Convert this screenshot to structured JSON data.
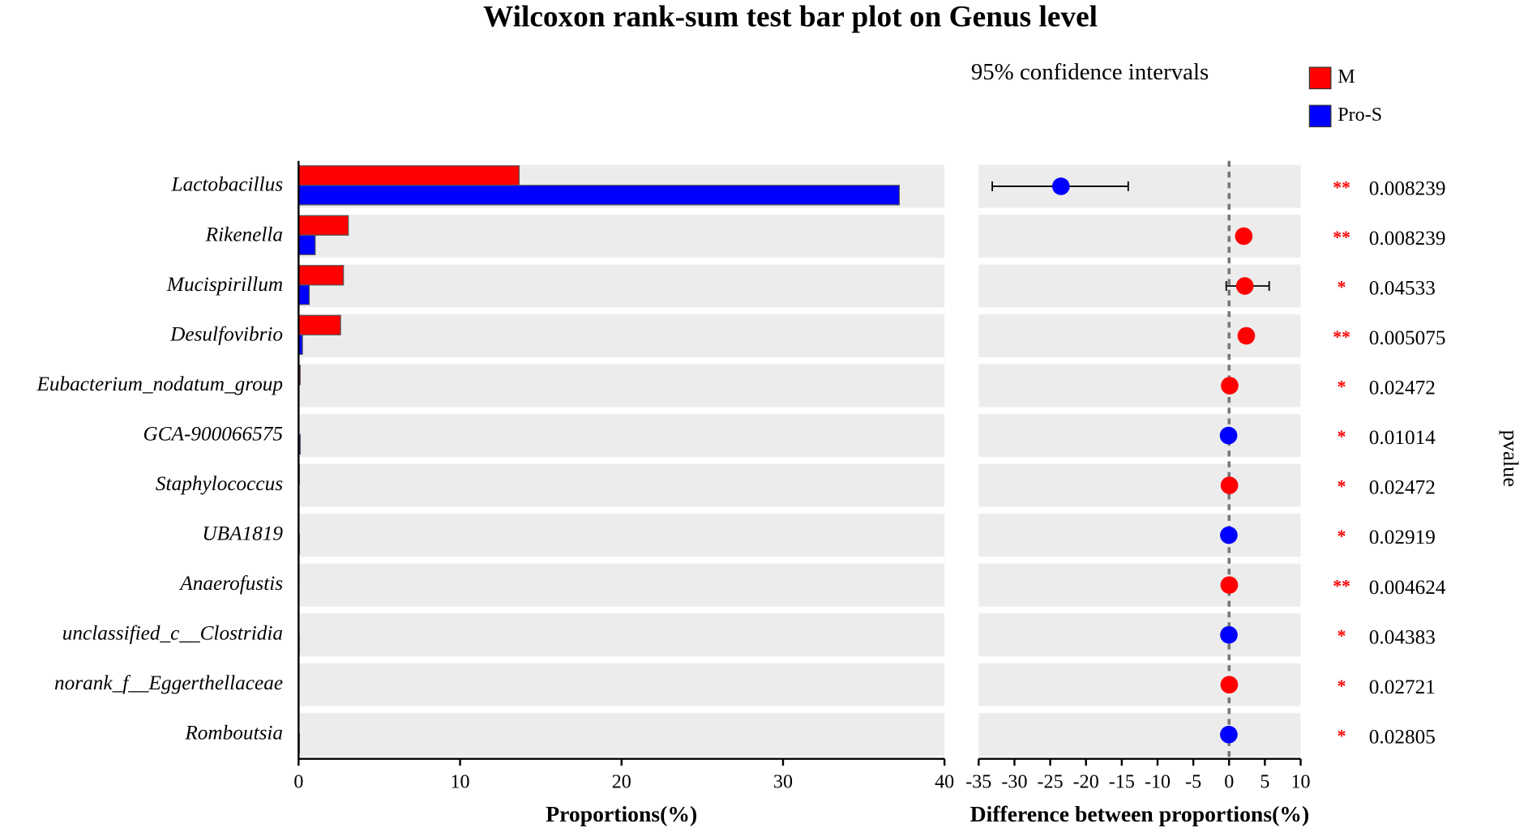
{
  "chart_data": [
    {
      "type": "hbar",
      "title": "Wilcoxon rank-sum test bar plot on Genus level",
      "categories": [
        "Lactobacillus",
        "Rikenella",
        "Mucispirillum",
        "Desulfovibrio",
        "Eubacterium_nodatum_group",
        "GCA-900066575",
        "Staphylococcus",
        "UBA1819",
        "Anaerofustis",
        "unclassified_c__Clostridia",
        "norank_f__Eggerthellaceae",
        "Romboutsia"
      ],
      "series": [
        {
          "name": "M",
          "color": "#ff0000",
          "values": [
            13.66,
            3.08,
            2.78,
            2.6,
            0.1,
            0.02,
            0.05,
            0.01,
            0.03,
            0.01,
            0.03,
            0.01
          ]
        },
        {
          "name": "Pro-S",
          "color": "#0000ff",
          "values": [
            37.2,
            1.03,
            0.66,
            0.24,
            0.02,
            0.1,
            0.01,
            0.05,
            0.01,
            0.04,
            0.01,
            0.05
          ]
        }
      ],
      "xlim": [
        0,
        40
      ],
      "xticks": [
        0,
        10,
        20,
        30,
        40
      ],
      "xlabel": "Proportions(%)"
    },
    {
      "type": "ci",
      "subtitle": "95% confidence intervals",
      "values": [
        -23.5,
        2.05,
        2.2,
        2.4,
        0.08,
        -0.08,
        0.04,
        -0.04,
        0.02,
        -0.03,
        0.02,
        -0.04
      ],
      "ci_low": [
        -33.1,
        1.6,
        -0.4,
        2.0,
        0.02,
        -0.15,
        0.01,
        -0.08,
        0.0,
        -0.06,
        0.0,
        -0.08
      ],
      "ci_high": [
        -14.1,
        2.5,
        5.6,
        2.8,
        0.14,
        -0.01,
        0.07,
        0.0,
        0.04,
        0.0,
        0.04,
        0.0
      ],
      "colors": [
        "#0000ff",
        "#ff0000",
        "#ff0000",
        "#ff0000",
        "#ff0000",
        "#0000ff",
        "#ff0000",
        "#0000ff",
        "#ff0000",
        "#0000ff",
        "#ff0000",
        "#0000ff"
      ],
      "xlim": [
        -35,
        10
      ],
      "xticks": [
        -35,
        -30,
        -25,
        -20,
        -15,
        -10,
        -5,
        0,
        5,
        10
      ],
      "xlabel": "Difference between proportions(%)",
      "pvalues": [
        0.008239,
        0.008239,
        0.04533,
        0.005075,
        0.02472,
        0.01014,
        0.02472,
        0.02919,
        0.004624,
        0.04383,
        0.02721,
        0.02805
      ],
      "significance": [
        "**",
        "**",
        "*",
        "**",
        "*",
        "*",
        "*",
        "*",
        "**",
        "*",
        "*",
        "*"
      ],
      "ylabel": "pvalue"
    }
  ]
}
